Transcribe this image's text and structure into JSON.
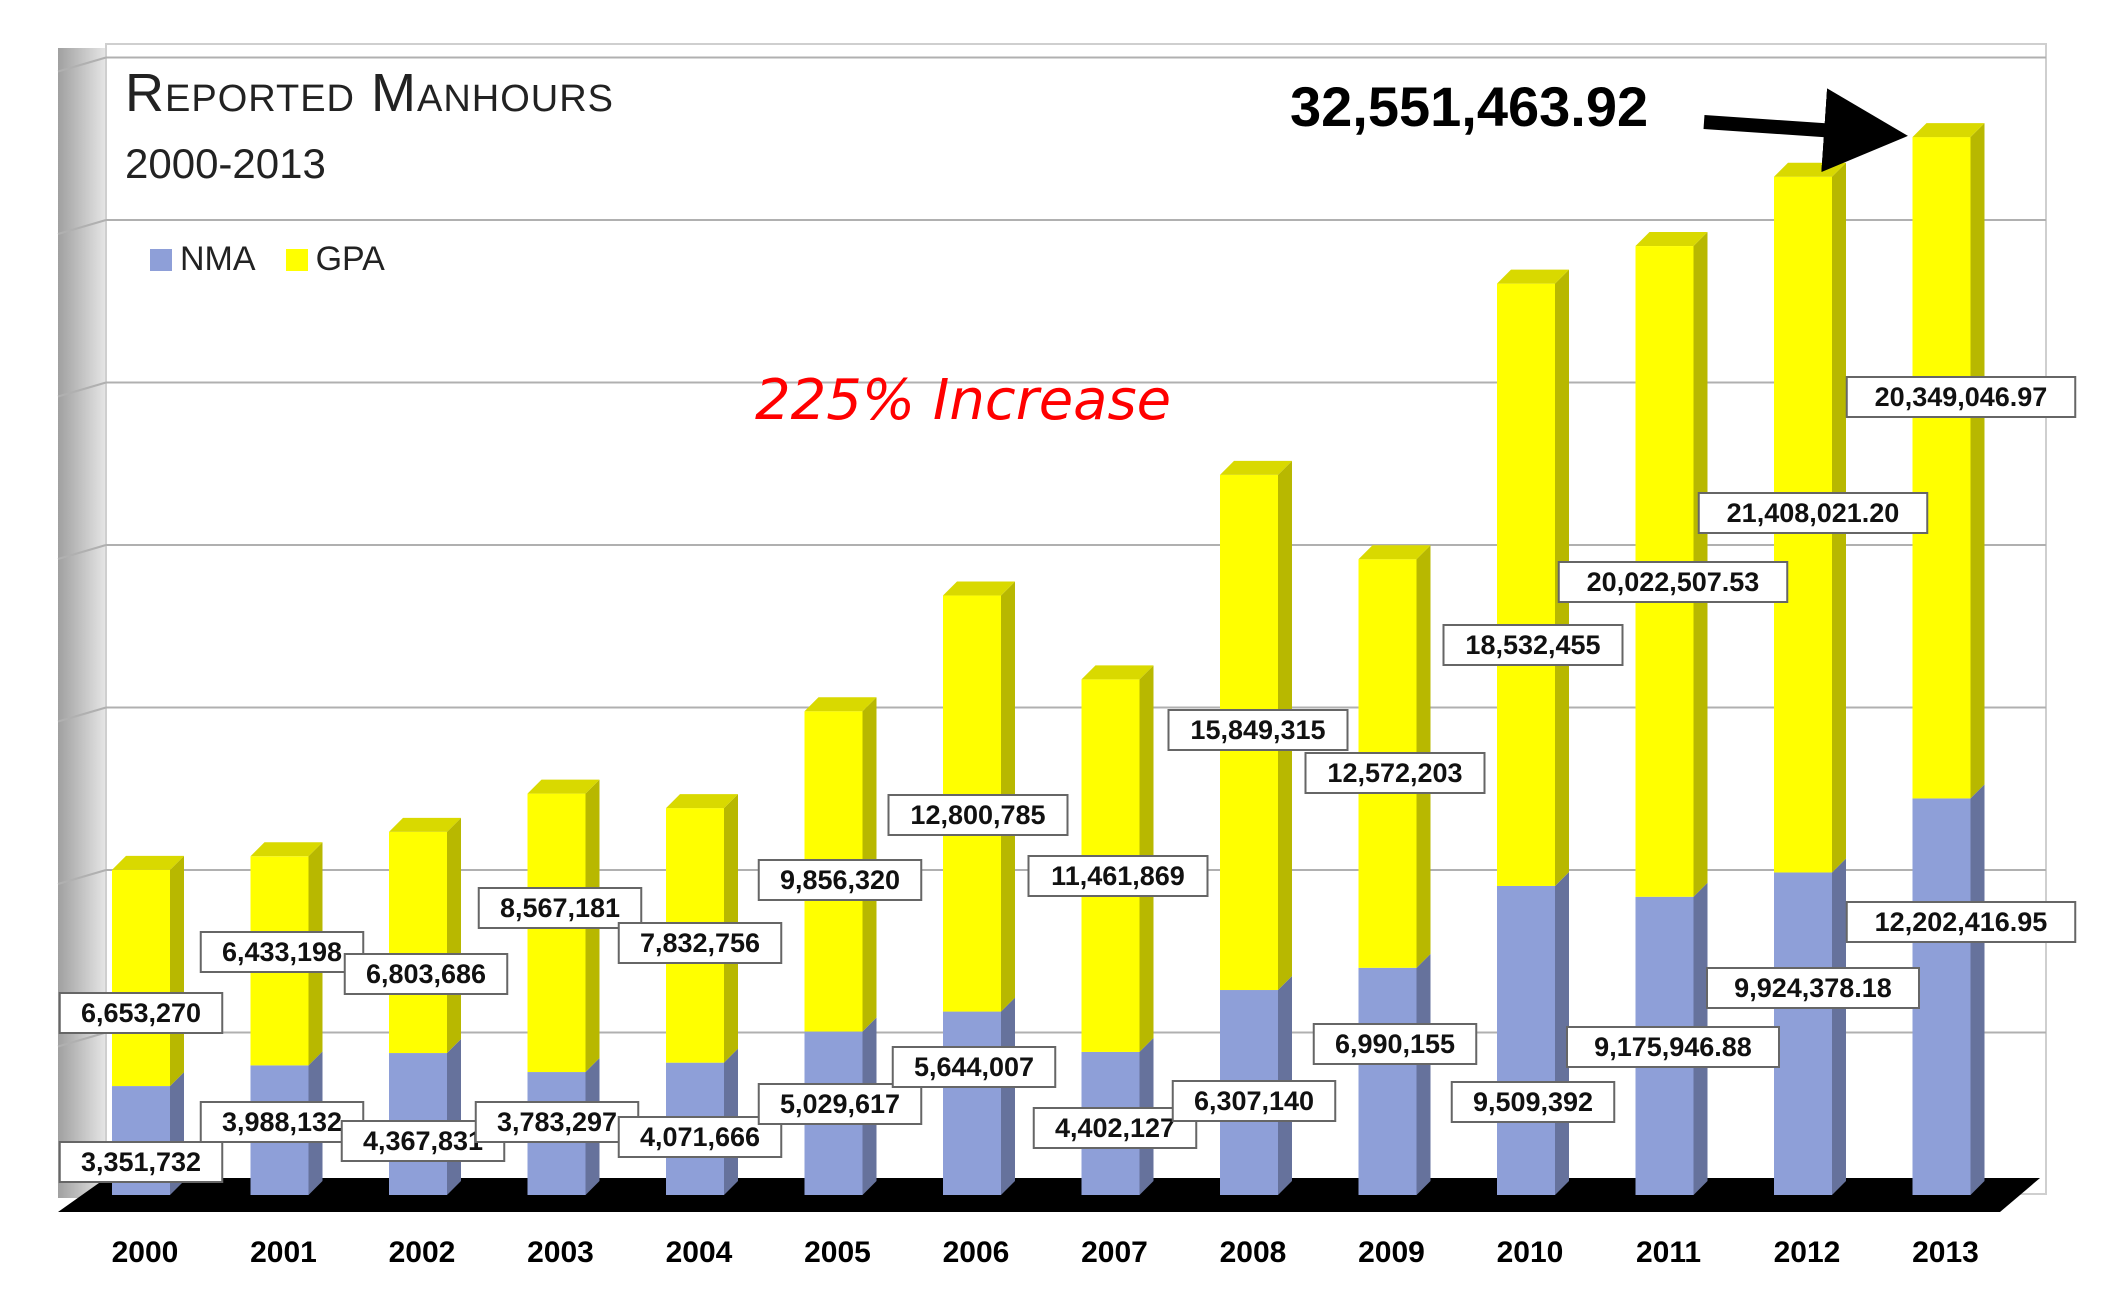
{
  "chart_data": {
    "type": "bar",
    "stacked": true,
    "three_d": true,
    "title": "Reported Manhours",
    "subtitle": "2000-2013",
    "categories": [
      "2000",
      "2001",
      "2002",
      "2003",
      "2004",
      "2005",
      "2006",
      "2007",
      "2008",
      "2009",
      "2010",
      "2011",
      "2012",
      "2013"
    ],
    "series": [
      {
        "name": "NMA",
        "color": "#8e9fd8",
        "values": [
          3351732,
          3988132,
          4367831,
          3783297,
          4071666,
          5029617,
          5644007,
          4402127,
          6307140,
          6990155,
          9509392,
          9175946.88,
          9924378.18,
          12202416.95
        ],
        "labels": [
          "3,351,732",
          "3,988,132",
          "4,367,831",
          "3,783,297",
          "4,071,666",
          "5,029,617",
          "5,644,007",
          "4,402,127",
          "6,307,140",
          "6,990,155",
          "9,509,392",
          "9,175,946.88",
          "9,924,378.18",
          "12,202,416.95"
        ]
      },
      {
        "name": "GPA",
        "color": "#ffff00",
        "values": [
          6653270,
          6433198,
          6803686,
          8567181,
          7832756,
          9856320,
          12800785,
          11461869,
          15849315,
          12572203,
          18532455,
          20022507.53,
          21408021.2,
          20349046.97
        ],
        "labels": [
          "6,653,270",
          "6,433,198",
          "6,803,686",
          "8,567,181",
          "7,832,756",
          "9,856,320",
          "12,800,785",
          "11,461,869",
          "15,849,315",
          "12,572,203",
          "18,532,455",
          "20,022,507.53",
          "21,408,021.20",
          "20,349,046.97"
        ]
      }
    ],
    "ylim": [
      0,
      35000000
    ],
    "grid": true,
    "legend": "top-left",
    "annotations": {
      "total": "32,551,463.92",
      "increase": "225% Increase"
    }
  }
}
